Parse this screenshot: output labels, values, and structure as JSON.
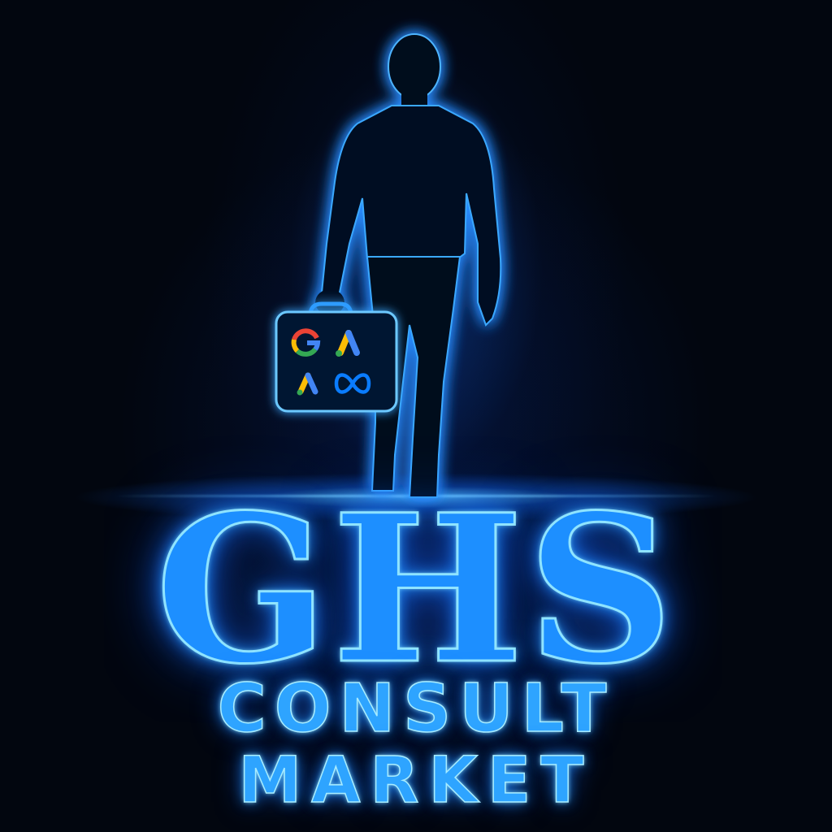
{
  "brand": {
    "headline": "GHS",
    "subline_1": "CONSULT",
    "subline_2": "MARKET"
  },
  "briefcase": {
    "icons": [
      "google-logo-icon",
      "google-ads-logo-icon",
      "google-ads-logo-icon",
      "meta-logo-icon"
    ]
  },
  "colors": {
    "background": "#02060f",
    "glow": "#1d8fff",
    "text_fill": "#2ea4ff",
    "text_outline": "#a8ecff",
    "google_blue": "#4285F4",
    "google_red": "#EA4335",
    "google_yellow": "#FBBC05",
    "google_green": "#34A853",
    "meta_blue": "#0a7cff"
  }
}
